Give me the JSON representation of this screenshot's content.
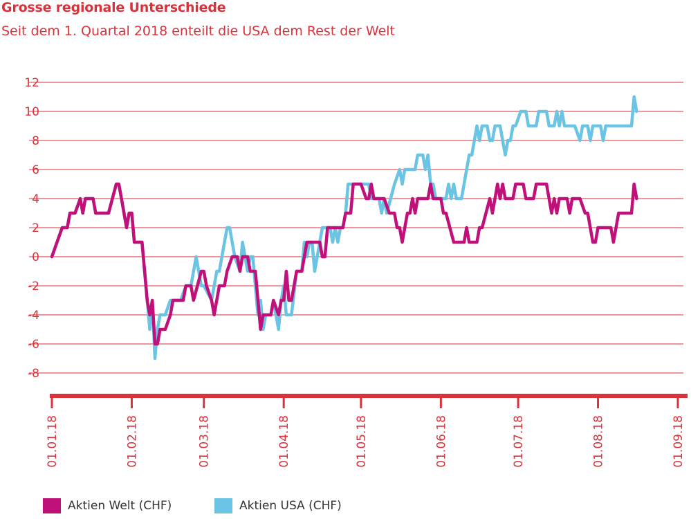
{
  "title": "Grosse regionale Unterschiede",
  "subtitle": "Seit dem 1. Quartal 2018 enteilt die USA dem Rest der Welt",
  "colors": {
    "accent": "#d9323b",
    "welt": "#c0107a",
    "usa": "#6cc4e4",
    "grid": "#d9323b"
  },
  "legend": [
    {
      "label": "Aktien Welt (CHF)",
      "color": "#c0107a"
    },
    {
      "label": "Aktien USA (CHF)",
      "color": "#6cc4e4"
    }
  ],
  "chart_data": {
    "type": "line",
    "title": "Grosse regionale Unterschiede",
    "subtitle": "Seit dem 1. Quartal 2018 enteilt die USA dem Rest der Welt",
    "xlabel": "",
    "ylabel": "",
    "ylim": [
      -9,
      12
    ],
    "yticks": [
      -8,
      -6,
      -4,
      -2,
      0,
      2,
      4,
      6,
      8,
      10,
      12
    ],
    "xrange": [
      "2018-01-01",
      "2018-09-01"
    ],
    "xticks": [
      "01.01.18",
      "01.02.18",
      "01.03.18",
      "01.04.18",
      "01.05.18",
      "01.06.18",
      "01.07.18",
      "01.08.18",
      "01.09.18"
    ],
    "grid": true,
    "legend_position": "bottom-left",
    "series": [
      {
        "name": "Aktien Welt (CHF)",
        "color": "#c0107a",
        "points": [
          [
            "2018-01-01",
            0
          ],
          [
            "2018-01-05",
            2
          ],
          [
            "2018-01-07",
            2
          ],
          [
            "2018-01-08",
            3
          ],
          [
            "2018-01-10",
            3
          ],
          [
            "2018-01-12",
            4
          ],
          [
            "2018-01-13",
            3
          ],
          [
            "2018-01-14",
            4
          ],
          [
            "2018-01-17",
            4
          ],
          [
            "2018-01-18",
            3
          ],
          [
            "2018-01-23",
            3
          ],
          [
            "2018-01-26",
            5
          ],
          [
            "2018-01-27",
            5
          ],
          [
            "2018-01-28",
            4
          ],
          [
            "2018-01-30",
            2
          ],
          [
            "2018-01-31",
            3
          ],
          [
            "2018-02-01",
            3
          ],
          [
            "2018-02-02",
            1
          ],
          [
            "2018-02-05",
            1
          ],
          [
            "2018-02-06",
            -1
          ],
          [
            "2018-02-07",
            -3
          ],
          [
            "2018-02-08",
            -4
          ],
          [
            "2018-02-09",
            -3
          ],
          [
            "2018-02-10",
            -6
          ],
          [
            "2018-02-11",
            -6
          ],
          [
            "2018-02-12",
            -5
          ],
          [
            "2018-02-14",
            -5
          ],
          [
            "2018-02-16",
            -4
          ],
          [
            "2018-02-17",
            -3
          ],
          [
            "2018-02-21",
            -3
          ],
          [
            "2018-02-22",
            -2
          ],
          [
            "2018-02-24",
            -2
          ],
          [
            "2018-02-25",
            -3
          ],
          [
            "2018-02-28",
            -1
          ],
          [
            "2018-03-01",
            -1
          ],
          [
            "2018-03-02",
            -2
          ],
          [
            "2018-03-04",
            -3
          ],
          [
            "2018-03-05",
            -4
          ],
          [
            "2018-03-07",
            -2
          ],
          [
            "2018-03-09",
            -2
          ],
          [
            "2018-03-10",
            -1
          ],
          [
            "2018-03-12",
            0
          ],
          [
            "2018-03-14",
            0
          ],
          [
            "2018-03-15",
            -1
          ],
          [
            "2018-03-16",
            0
          ],
          [
            "2018-03-18",
            0
          ],
          [
            "2018-03-19",
            -1
          ],
          [
            "2018-03-21",
            -1
          ],
          [
            "2018-03-23",
            -5
          ],
          [
            "2018-03-24",
            -4
          ],
          [
            "2018-03-27",
            -4
          ],
          [
            "2018-03-28",
            -3
          ],
          [
            "2018-03-30",
            -4
          ],
          [
            "2018-03-31",
            -3
          ],
          [
            "2018-04-01",
            -3
          ],
          [
            "2018-04-02",
            -1
          ],
          [
            "2018-04-03",
            -3
          ],
          [
            "2018-04-04",
            -3
          ],
          [
            "2018-04-06",
            -1
          ],
          [
            "2018-04-08",
            -1
          ],
          [
            "2018-04-10",
            1
          ],
          [
            "2018-04-15",
            1
          ],
          [
            "2018-04-16",
            0
          ],
          [
            "2018-04-17",
            0
          ],
          [
            "2018-04-18",
            2
          ],
          [
            "2018-04-24",
            2
          ],
          [
            "2018-04-25",
            3
          ],
          [
            "2018-04-27",
            3
          ],
          [
            "2018-04-28",
            5
          ],
          [
            "2018-04-30",
            5
          ],
          [
            "2018-05-01",
            5
          ],
          [
            "2018-05-03",
            4
          ],
          [
            "2018-05-04",
            4
          ],
          [
            "2018-05-05",
            5
          ],
          [
            "2018-05-06",
            4
          ],
          [
            "2018-05-10",
            4
          ],
          [
            "2018-05-12",
            3
          ],
          [
            "2018-05-14",
            3
          ],
          [
            "2018-05-15",
            2
          ],
          [
            "2018-05-16",
            2
          ],
          [
            "2018-05-17",
            1
          ],
          [
            "2018-05-19",
            3
          ],
          [
            "2018-05-20",
            3
          ],
          [
            "2018-05-21",
            4
          ],
          [
            "2018-05-22",
            3
          ],
          [
            "2018-05-23",
            4
          ],
          [
            "2018-05-27",
            4
          ],
          [
            "2018-05-28",
            5
          ],
          [
            "2018-05-29",
            4
          ],
          [
            "2018-06-01",
            4
          ],
          [
            "2018-06-02",
            3
          ],
          [
            "2018-06-03",
            3
          ],
          [
            "2018-06-06",
            1
          ],
          [
            "2018-06-10",
            1
          ],
          [
            "2018-06-11",
            2
          ],
          [
            "2018-06-12",
            1
          ],
          [
            "2018-06-15",
            1
          ],
          [
            "2018-06-16",
            2
          ],
          [
            "2018-06-17",
            2
          ],
          [
            "2018-06-20",
            4
          ],
          [
            "2018-06-21",
            3
          ],
          [
            "2018-06-23",
            5
          ],
          [
            "2018-06-24",
            4
          ],
          [
            "2018-06-25",
            5
          ],
          [
            "2018-06-26",
            4
          ],
          [
            "2018-06-29",
            4
          ],
          [
            "2018-06-30",
            5
          ],
          [
            "2018-07-03",
            5
          ],
          [
            "2018-07-04",
            4
          ],
          [
            "2018-07-07",
            4
          ],
          [
            "2018-07-08",
            5
          ],
          [
            "2018-07-12",
            5
          ],
          [
            "2018-07-13",
            4
          ],
          [
            "2018-07-14",
            3
          ],
          [
            "2018-07-15",
            4
          ],
          [
            "2018-07-16",
            3
          ],
          [
            "2018-07-17",
            4
          ],
          [
            "2018-07-20",
            4
          ],
          [
            "2018-07-21",
            3
          ],
          [
            "2018-07-22",
            4
          ],
          [
            "2018-07-25",
            4
          ],
          [
            "2018-07-27",
            3
          ],
          [
            "2018-07-28",
            3
          ],
          [
            "2018-07-30",
            1
          ],
          [
            "2018-07-31",
            1
          ],
          [
            "2018-08-01",
            2
          ],
          [
            "2018-08-06",
            2
          ],
          [
            "2018-08-07",
            1
          ],
          [
            "2018-08-08",
            2
          ],
          [
            "2018-08-09",
            3
          ],
          [
            "2018-08-14",
            3
          ],
          [
            "2018-08-15",
            5
          ],
          [
            "2018-08-16",
            4
          ]
        ]
      },
      {
        "name": "Aktien USA (CHF)",
        "color": "#6cc4e4",
        "points": [
          [
            "2018-01-01",
            0
          ],
          [
            "2018-01-05",
            2
          ],
          [
            "2018-01-07",
            2
          ],
          [
            "2018-01-08",
            3
          ],
          [
            "2018-01-10",
            3
          ],
          [
            "2018-01-12",
            4
          ],
          [
            "2018-01-13",
            3
          ],
          [
            "2018-01-14",
            4
          ],
          [
            "2018-01-17",
            4
          ],
          [
            "2018-01-18",
            3
          ],
          [
            "2018-01-23",
            3
          ],
          [
            "2018-01-26",
            5
          ],
          [
            "2018-01-27",
            5
          ],
          [
            "2018-01-28",
            4
          ],
          [
            "2018-01-29",
            3
          ],
          [
            "2018-01-30",
            2
          ],
          [
            "2018-01-31",
            3
          ],
          [
            "2018-02-01",
            3
          ],
          [
            "2018-02-02",
            1
          ],
          [
            "2018-02-05",
            1
          ],
          [
            "2018-02-06",
            -1
          ],
          [
            "2018-02-07",
            -3
          ],
          [
            "2018-02-08",
            -5
          ],
          [
            "2018-02-09",
            -3
          ],
          [
            "2018-02-10",
            -7
          ],
          [
            "2018-02-11",
            -5
          ],
          [
            "2018-02-12",
            -4
          ],
          [
            "2018-02-14",
            -4
          ],
          [
            "2018-02-16",
            -3
          ],
          [
            "2018-02-20",
            -3
          ],
          [
            "2018-02-22",
            -2
          ],
          [
            "2018-02-24",
            -2
          ],
          [
            "2018-02-25",
            -1
          ],
          [
            "2018-02-26",
            0
          ],
          [
            "2018-02-28",
            -2
          ],
          [
            "2018-03-01",
            -2
          ],
          [
            "2018-03-04",
            -3
          ],
          [
            "2018-03-06",
            -1
          ],
          [
            "2018-03-07",
            -1
          ],
          [
            "2018-03-08",
            0
          ],
          [
            "2018-03-10",
            2
          ],
          [
            "2018-03-11",
            2
          ],
          [
            "2018-03-13",
            0
          ],
          [
            "2018-03-15",
            -1
          ],
          [
            "2018-03-16",
            1
          ],
          [
            "2018-03-17",
            0
          ],
          [
            "2018-03-18",
            -1
          ],
          [
            "2018-03-19",
            0
          ],
          [
            "2018-03-20",
            0
          ],
          [
            "2018-03-22",
            -4
          ],
          [
            "2018-03-23",
            -3
          ],
          [
            "2018-03-24",
            -5
          ],
          [
            "2018-03-25",
            -4
          ],
          [
            "2018-03-27",
            -4
          ],
          [
            "2018-03-28",
            -3
          ],
          [
            "2018-03-30",
            -5
          ],
          [
            "2018-03-31",
            -3
          ],
          [
            "2018-04-01",
            -2
          ],
          [
            "2018-04-02",
            -4
          ],
          [
            "2018-04-04",
            -4
          ],
          [
            "2018-04-06",
            -1
          ],
          [
            "2018-04-08",
            -1
          ],
          [
            "2018-04-09",
            1
          ],
          [
            "2018-04-10",
            0
          ],
          [
            "2018-04-11",
            1
          ],
          [
            "2018-04-12",
            1
          ],
          [
            "2018-04-13",
            -1
          ],
          [
            "2018-04-14",
            0
          ],
          [
            "2018-04-15",
            1
          ],
          [
            "2018-04-16",
            2
          ],
          [
            "2018-04-19",
            2
          ],
          [
            "2018-04-20",
            1
          ],
          [
            "2018-04-21",
            2
          ],
          [
            "2018-04-22",
            1
          ],
          [
            "2018-04-23",
            2
          ],
          [
            "2018-04-24",
            2
          ],
          [
            "2018-04-25",
            3
          ],
          [
            "2018-04-26",
            5
          ],
          [
            "2018-05-04",
            5
          ],
          [
            "2018-05-05",
            4
          ],
          [
            "2018-05-08",
            4
          ],
          [
            "2018-05-09",
            3
          ],
          [
            "2018-05-10",
            4
          ],
          [
            "2018-05-11",
            3
          ],
          [
            "2018-05-14",
            5
          ],
          [
            "2018-05-16",
            6
          ],
          [
            "2018-05-17",
            5
          ],
          [
            "2018-05-18",
            6
          ],
          [
            "2018-05-22",
            6
          ],
          [
            "2018-05-23",
            7
          ],
          [
            "2018-05-25",
            7
          ],
          [
            "2018-05-26",
            6
          ],
          [
            "2018-05-27",
            7
          ],
          [
            "2018-05-28",
            5
          ],
          [
            "2018-05-29",
            5
          ],
          [
            "2018-05-30",
            4
          ],
          [
            "2018-06-03",
            4
          ],
          [
            "2018-06-04",
            5
          ],
          [
            "2018-06-05",
            4
          ],
          [
            "2018-06-06",
            5
          ],
          [
            "2018-06-07",
            4
          ],
          [
            "2018-06-09",
            4
          ],
          [
            "2018-06-10",
            5
          ],
          [
            "2018-06-12",
            7
          ],
          [
            "2018-06-13",
            7
          ],
          [
            "2018-06-15",
            9
          ],
          [
            "2018-06-16",
            8
          ],
          [
            "2018-06-17",
            9
          ],
          [
            "2018-06-19",
            9
          ],
          [
            "2018-06-20",
            8
          ],
          [
            "2018-06-21",
            8
          ],
          [
            "2018-06-22",
            9
          ],
          [
            "2018-06-24",
            9
          ],
          [
            "2018-06-25",
            8
          ],
          [
            "2018-06-26",
            7
          ],
          [
            "2018-06-27",
            8
          ],
          [
            "2018-06-28",
            8
          ],
          [
            "2018-06-29",
            9
          ],
          [
            "2018-06-30",
            9
          ],
          [
            "2018-07-02",
            10
          ],
          [
            "2018-07-04",
            10
          ],
          [
            "2018-07-05",
            9
          ],
          [
            "2018-07-08",
            9
          ],
          [
            "2018-07-09",
            10
          ],
          [
            "2018-07-12",
            10
          ],
          [
            "2018-07-13",
            9
          ],
          [
            "2018-07-15",
            9
          ],
          [
            "2018-07-16",
            10
          ],
          [
            "2018-07-17",
            9
          ],
          [
            "2018-07-18",
            10
          ],
          [
            "2018-07-19",
            9
          ],
          [
            "2018-07-23",
            9
          ],
          [
            "2018-07-25",
            8
          ],
          [
            "2018-07-26",
            9
          ],
          [
            "2018-07-28",
            9
          ],
          [
            "2018-07-29",
            8
          ],
          [
            "2018-07-30",
            9
          ],
          [
            "2018-08-02",
            9
          ],
          [
            "2018-08-03",
            8
          ],
          [
            "2018-08-04",
            9
          ],
          [
            "2018-08-05",
            9
          ],
          [
            "2018-08-06",
            9
          ],
          [
            "2018-08-14",
            9
          ],
          [
            "2018-08-15",
            11
          ],
          [
            "2018-08-16",
            10
          ]
        ]
      }
    ]
  }
}
